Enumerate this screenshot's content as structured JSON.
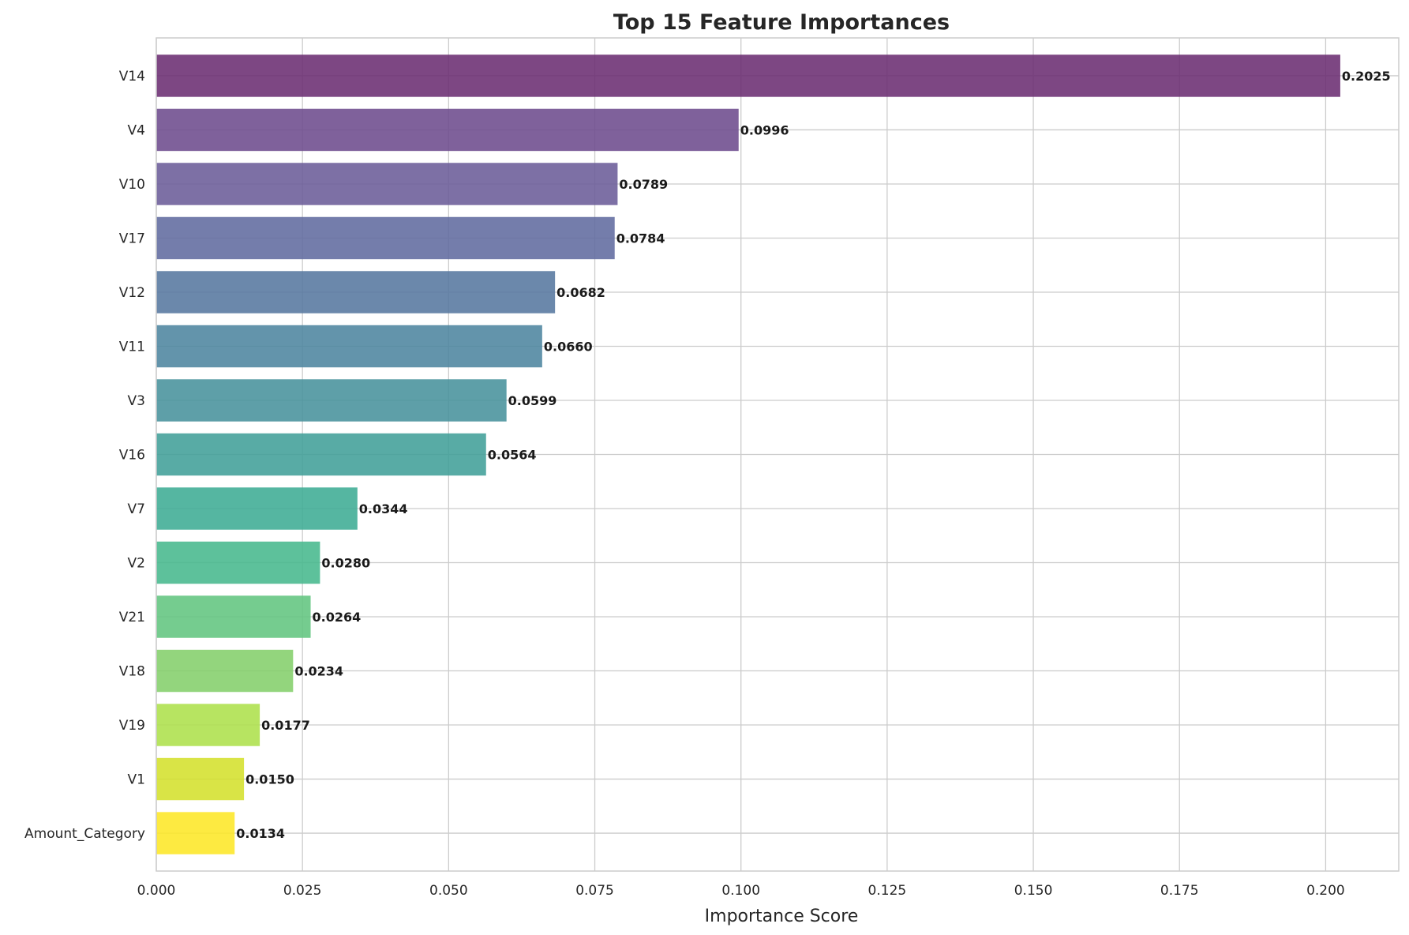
{
  "chart_data": {
    "type": "bar",
    "orientation": "horizontal",
    "title": "Top 15 Feature Importances",
    "xlabel": "Importance Score",
    "ylabel": "",
    "xlim": [
      0,
      0.2125
    ],
    "xticks": [
      {
        "value": 0.0,
        "label": "0.000"
      },
      {
        "value": 0.025,
        "label": "0.025"
      },
      {
        "value": 0.05,
        "label": "0.050"
      },
      {
        "value": 0.075,
        "label": "0.075"
      },
      {
        "value": 0.1,
        "label": "0.100"
      },
      {
        "value": 0.125,
        "label": "0.125"
      },
      {
        "value": 0.15,
        "label": "0.150"
      },
      {
        "value": 0.175,
        "label": "0.175"
      },
      {
        "value": 0.2,
        "label": "0.200"
      }
    ],
    "grid": true,
    "legend": "none",
    "bars": [
      {
        "category": "V14",
        "value": 0.2025,
        "label": "0.2025",
        "color": "#6a2c70"
      },
      {
        "category": "V4",
        "value": 0.0996,
        "label": "0.0996",
        "color": "#6c4a8c"
      },
      {
        "category": "V10",
        "value": 0.0789,
        "label": "0.0789",
        "color": "#6a5b98"
      },
      {
        "category": "V17",
        "value": 0.0784,
        "label": "0.0784",
        "color": "#5f6a9f"
      },
      {
        "category": "V12",
        "value": 0.0682,
        "label": "0.0682",
        "color": "#55769f"
      },
      {
        "category": "V11",
        "value": 0.066,
        "label": "0.0660",
        "color": "#4c849e"
      },
      {
        "category": "V3",
        "value": 0.0599,
        "label": "0.0599",
        "color": "#46919b"
      },
      {
        "category": "V16",
        "value": 0.0564,
        "label": "0.0564",
        "color": "#3f9e98"
      },
      {
        "category": "V7",
        "value": 0.0344,
        "label": "0.0344",
        "color": "#3cab93"
      },
      {
        "category": "V2",
        "value": 0.028,
        "label": "0.0280",
        "color": "#45b88c"
      },
      {
        "category": "V21",
        "value": 0.0264,
        "label": "0.0264",
        "color": "#60c47e"
      },
      {
        "category": "V18",
        "value": 0.0234,
        "label": "0.0234",
        "color": "#83cf6a"
      },
      {
        "category": "V19",
        "value": 0.0177,
        "label": "0.0177",
        "color": "#ace04a"
      },
      {
        "category": "V1",
        "value": 0.015,
        "label": "0.0150",
        "color": "#d3e02b"
      },
      {
        "category": "Amount_Category",
        "value": 0.0134,
        "label": "0.0134",
        "color": "#fde725"
      }
    ]
  }
}
